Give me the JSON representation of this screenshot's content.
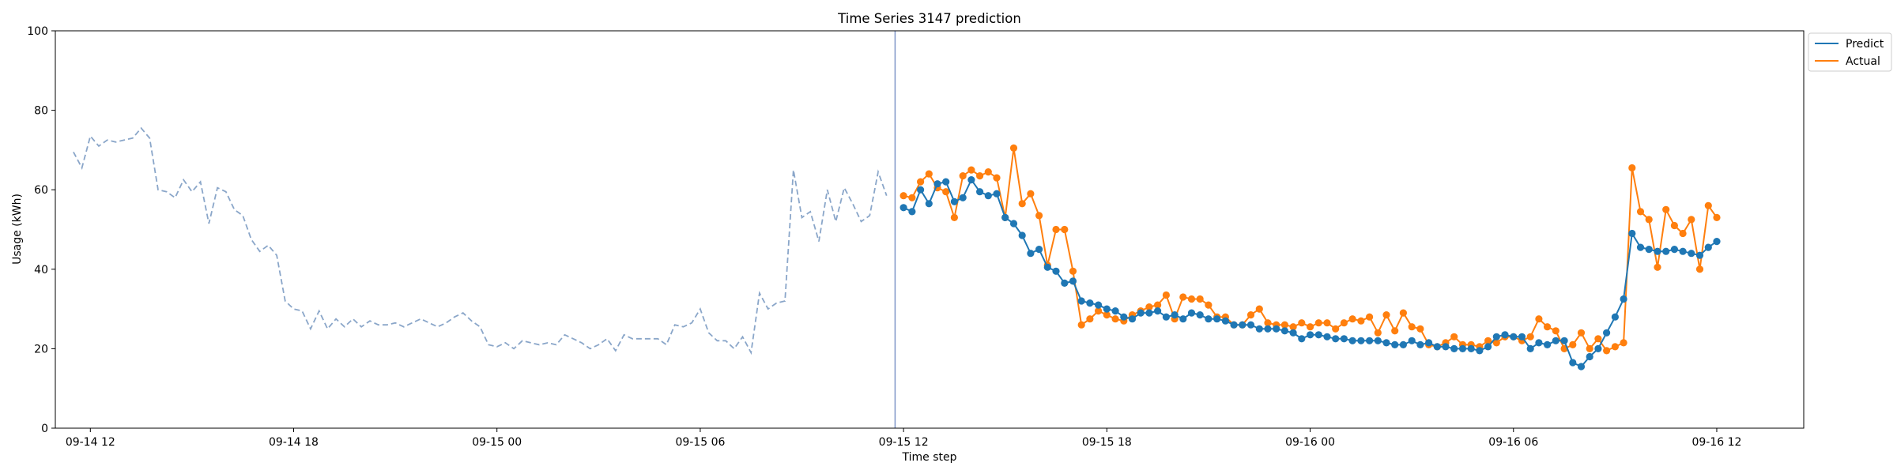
{
  "chart_data": {
    "type": "line",
    "title": "Time Series 3147 prediction",
    "xlabel": "Time step",
    "ylabel": "Usage (kWh)",
    "ylim": [
      0,
      100
    ],
    "yticks": [
      0,
      20,
      40,
      60,
      80,
      100
    ],
    "xlim": [
      "09-14 10:58",
      "09-16 14:34"
    ],
    "xticks": [
      {
        "t": "09-14 12:00",
        "label": "09-14 12"
      },
      {
        "t": "09-14 18:00",
        "label": "09-14 18"
      },
      {
        "t": "09-15 00:00",
        "label": "09-15 00"
      },
      {
        "t": "09-15 06:00",
        "label": "09-15 06"
      },
      {
        "t": "09-15 12:00",
        "label": "09-15 12"
      },
      {
        "t": "09-15 18:00",
        "label": "09-15 18"
      },
      {
        "t": "09-16 00:00",
        "label": "09-16 00"
      },
      {
        "t": "09-16 06:00",
        "label": "09-16 06"
      },
      {
        "t": "09-16 12:00",
        "label": "09-16 12"
      }
    ],
    "forecast_start": "09-15 11:45",
    "grid": false,
    "legend_position": "top-right-outside",
    "history": {
      "start": "09-14 11:30",
      "step_minutes": 15,
      "color": "#8aa6c9",
      "values": [
        69.5,
        65.5,
        73.5,
        71,
        72.5,
        72,
        72.5,
        73,
        75.5,
        73,
        60,
        59.5,
        58,
        62.5,
        59.5,
        62,
        51.5,
        60.5,
        59.5,
        55,
        53.5,
        47.5,
        44.5,
        46,
        43.5,
        32,
        30,
        29.5,
        25,
        29.5,
        25,
        27.5,
        25.5,
        27.5,
        25.5,
        27,
        26,
        26,
        26.5,
        25.5,
        26.5,
        27.5,
        26.5,
        25.5,
        26.5,
        28,
        29,
        27,
        25.5,
        21,
        20.5,
        21.5,
        20,
        22,
        21.5,
        21,
        21.5,
        21,
        23.5,
        22.5,
        21.5,
        20,
        21,
        22.5,
        19.5,
        23.5,
        22.5,
        22.5,
        22.5,
        22.5,
        21,
        26,
        25.5,
        26.5,
        30,
        24,
        22,
        22,
        20,
        23,
        19,
        34,
        30,
        31.5,
        32,
        65,
        53,
        54.5,
        47,
        60,
        52,
        60.5,
        56.5,
        52,
        53.5,
        64.5,
        58.5
      ]
    },
    "forecast": {
      "start": "09-15 12:00",
      "step_minutes": 15,
      "series": [
        {
          "name": "Predict",
          "color": "#1f77b4",
          "values": [
            55.5,
            54.5,
            60,
            56.5,
            61.5,
            62,
            57,
            58,
            62.5,
            59.5,
            58.5,
            59,
            53,
            51.5,
            48.5,
            44,
            45,
            40.5,
            39.5,
            36.5,
            37,
            32,
            31.5,
            31,
            30,
            29.5,
            28,
            27.5,
            29,
            29,
            29.5,
            28,
            28.5,
            27.5,
            29,
            28.5,
            27.5,
            27.5,
            27,
            26,
            26,
            26,
            25,
            25,
            25,
            24.5,
            24,
            22.5,
            23.5,
            23.5,
            23,
            22.5,
            22.5,
            22,
            22,
            22,
            22,
            21.5,
            21,
            21,
            22,
            21,
            21.5,
            20.5,
            20.5,
            20,
            20,
            20,
            19.5,
            20.5,
            23,
            23.5,
            23,
            23,
            20,
            21.5,
            21,
            22,
            22,
            16.5,
            15.5,
            18,
            20,
            24,
            28,
            32.5,
            49,
            45.5,
            45,
            44.5,
            44.5,
            45,
            44.5,
            44,
            43.5,
            45.5,
            47
          ]
        },
        {
          "name": "Actual",
          "color": "#ff7f0e",
          "values": [
            58.5,
            58,
            62,
            64,
            60.5,
            59.5,
            53,
            63.5,
            65,
            63.5,
            64.5,
            63,
            53,
            70.5,
            56.5,
            59,
            53.5,
            41,
            50,
            50,
            39.5,
            26,
            27.5,
            29.5,
            28.5,
            27.5,
            27,
            28.5,
            29.5,
            30.5,
            31,
            33.5,
            27.5,
            33,
            32.5,
            32.5,
            31,
            28,
            28,
            26,
            26,
            28.5,
            30,
            26.5,
            26,
            26,
            25.5,
            26.5,
            25.5,
            26.5,
            26.5,
            25,
            26.5,
            27.5,
            27,
            28,
            24,
            28.5,
            24.5,
            29,
            25.5,
            25,
            21,
            20.5,
            21.5,
            23,
            21,
            21,
            20.5,
            22,
            21.5,
            23,
            23,
            22,
            23,
            27.5,
            25.5,
            24.5,
            20,
            21,
            24,
            20,
            22.5,
            19.5,
            20.5,
            21.5,
            65.5,
            54.5,
            52.5,
            40.5,
            55,
            51,
            49,
            52.5,
            40,
            56,
            53
          ]
        }
      ]
    }
  }
}
